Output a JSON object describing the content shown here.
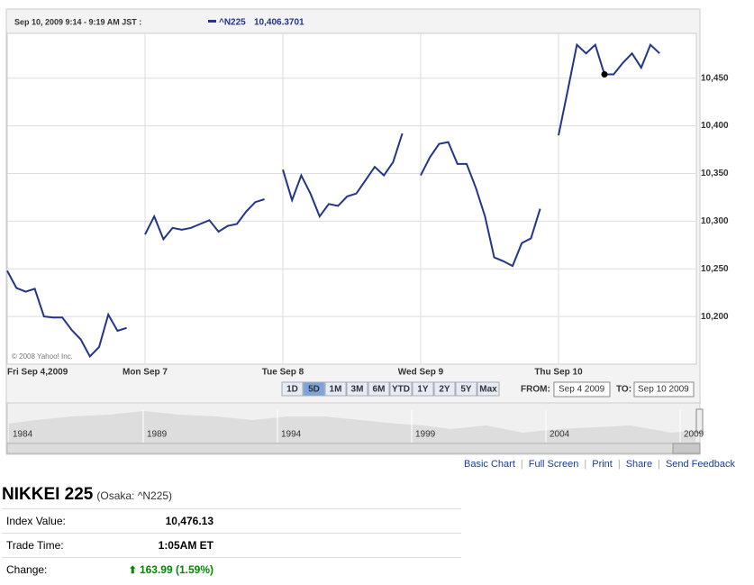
{
  "chart_data": {
    "type": "line",
    "legend_time": "Sep 10, 2009 9:14 - 9:19 AM JST :",
    "legend_value": "10,406.3701",
    "copyright": "© 2008 Yahoo! Inc.",
    "categories": [
      "Fri Sep 4,2009",
      null,
      null,
      null,
      null,
      null,
      null,
      null,
      null,
      null,
      null,
      null,
      null,
      null,
      null,
      "Mon Sep 7",
      null,
      null,
      null,
      null,
      null,
      null,
      null,
      null,
      null,
      null,
      null,
      null,
      null,
      null,
      "Tue Sep 8",
      null,
      null,
      null,
      null,
      null,
      null,
      null,
      null,
      null,
      null,
      null,
      null,
      null,
      null,
      "Wed Sep 9",
      null,
      null,
      null,
      null,
      null,
      null,
      null,
      null,
      null,
      null,
      null,
      null,
      null,
      null,
      "Thu Sep 10",
      null,
      null,
      null,
      null,
      null,
      null,
      null,
      null,
      null,
      null,
      null
    ],
    "series": [
      {
        "name": "^N225",
        "color": "#22358a",
        "values": [
          10248,
          10230,
          10226,
          10229,
          10200,
          10199,
          10199,
          10186,
          10176,
          10158,
          10168,
          10202,
          10185,
          10188,
          null,
          10286,
          10305,
          10281,
          10293,
          10291,
          10293,
          10297,
          10301,
          10289,
          10295,
          10297,
          10310,
          10320,
          10323,
          null,
          10354,
          10322,
          10348,
          10329,
          10305,
          10318,
          10316,
          10326,
          10329,
          10343,
          10357,
          10348,
          10362,
          10392,
          null,
          10348,
          10367,
          10381,
          10383,
          10360,
          10360,
          10335,
          10305,
          10262,
          10258,
          10253,
          10277,
          10282,
          10313,
          null,
          10390,
          10437,
          10485,
          10476,
          10485,
          10454,
          10454,
          10466,
          10476,
          10461,
          10485,
          10476
        ]
      }
    ],
    "highlight_index": 65,
    "ylim": [
      10150,
      10497
    ],
    "yticks": [
      {
        "value": 10200,
        "label": "10,200"
      },
      {
        "value": 10250,
        "label": "10,250"
      },
      {
        "value": 10300,
        "label": "10,300"
      },
      {
        "value": 10350,
        "label": "10,350"
      },
      {
        "value": 10400,
        "label": "10,400"
      },
      {
        "value": 10450,
        "label": "10,450"
      }
    ],
    "grid": true
  },
  "controls": {
    "ranges": [
      "1D",
      "5D",
      "1M",
      "3M",
      "6M",
      "YTD",
      "1Y",
      "2Y",
      "5Y",
      "Max"
    ],
    "selected": 1,
    "from_label": "FROM:",
    "from": "Sep 4 2009",
    "to_label": "TO:",
    "to": "Sep 10 2009"
  },
  "overview_years": [
    "1984",
    "1989",
    "1994",
    "1999",
    "2004",
    "2009"
  ],
  "links": [
    "Basic Chart",
    "Full Screen",
    "Print",
    "Share",
    "Send Feedback"
  ],
  "quote": {
    "name": "NIKKEI 225",
    "exchange": "(Osaka: ^N225)",
    "rows": [
      [
        "Index Value:",
        "10,476.13"
      ],
      [
        "Trade Time:",
        "1:05AM ET"
      ],
      [
        "Change:",
        "163.99 (1.59%)"
      ]
    ]
  }
}
